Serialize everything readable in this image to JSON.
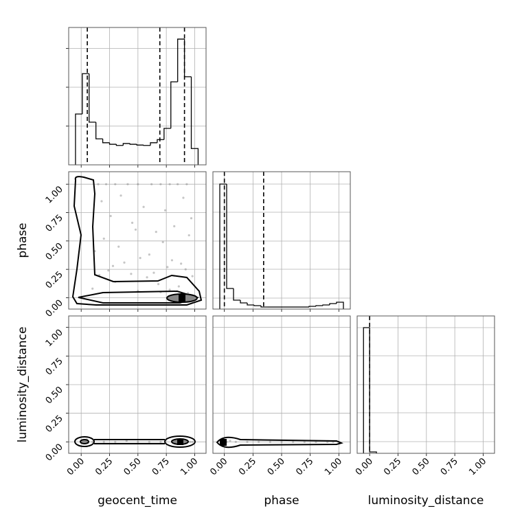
{
  "chart_data": [
    {
      "type": "histogram",
      "color": "#000000",
      "grid": true,
      "bins": [
        -0.05,
        0.01,
        0.07,
        0.13,
        0.19,
        0.25,
        0.31,
        0.37,
        0.43,
        0.49,
        0.55,
        0.61,
        0.67,
        0.73,
        0.79,
        0.85,
        0.91,
        0.97,
        1.03
      ],
      "counts": [
        131,
        235,
        110,
        67,
        57,
        53,
        50,
        55,
        53,
        51,
        50,
        57,
        65,
        94,
        214,
        324,
        227,
        42
      ],
      "quantiles": [
        0.054,
        0.693,
        0.91
      ],
      "xlim": [
        -0.11,
        1.1
      ],
      "ylim": [
        0,
        354
      ],
      "xticks": [
        0,
        0.25,
        0.5,
        0.75,
        1
      ],
      "yticks": [
        100,
        200,
        300
      ]
    },
    {
      "type": "scatter",
      "color": "#808080",
      "grid": true,
      "ylabel": "phase",
      "x": [
        0.15,
        0.22,
        0.3,
        0.41,
        0.5,
        0.62,
        0.7,
        0.78,
        0.85,
        0.93,
        0.18,
        0.26,
        0.35,
        0.45,
        0.55,
        0.66,
        0.74,
        0.82,
        0.9,
        0.97,
        0.2,
        0.33,
        0.48,
        0.6,
        0.72,
        0.88,
        0.95,
        0.12,
        0.28,
        0.52,
        0.64,
        0.8,
        0.92,
        0.16,
        0.38,
        0.58,
        0.76,
        0.98,
        0.24,
        0.44,
        0.68,
        0.86,
        0.1,
        0.3,
        0.5,
        0.7,
        0.9,
        0.84,
        0.78,
        0.94
      ],
      "y": [
        1,
        1,
        1,
        1,
        1,
        1,
        1,
        1,
        1,
        1,
        0.85,
        0.72,
        0.9,
        0.66,
        0.8,
        0.58,
        0.77,
        0.63,
        0.88,
        0.7,
        0.52,
        0.45,
        0.6,
        0.38,
        0.49,
        0.3,
        0.55,
        0.41,
        0.28,
        0.35,
        0.22,
        0.33,
        0.25,
        0.2,
        0.31,
        0.18,
        0.27,
        0.19,
        0.24,
        0.21,
        0.12,
        0.1,
        0.08,
        0.14,
        0.06,
        0.05,
        0.03,
        0.02,
        0.07,
        0.04
      ],
      "xlim": [
        -0.11,
        1.1
      ],
      "ylim": [
        -0.1,
        1.11
      ],
      "xticks": [
        0,
        0.25,
        0.5,
        0.75,
        1
      ],
      "yticks": [
        {
          "value": 0,
          "label": "0.00"
        },
        {
          "value": 0.25,
          "label": "0.25"
        },
        {
          "value": 0.5,
          "label": "0.50"
        },
        {
          "value": 0.75,
          "label": "0.75"
        },
        {
          "value": 1,
          "label": "1.00"
        }
      ]
    },
    {
      "type": "histogram",
      "color": "#000000",
      "grid": true,
      "bins": [
        -0.04,
        0.02,
        0.08,
        0.14,
        0.2,
        0.26,
        0.32,
        0.38,
        0.44,
        0.5,
        0.56,
        0.62,
        0.68,
        0.74,
        0.8,
        0.86,
        0.92,
        0.98,
        1.04
      ],
      "counts": [
        182,
        30,
        13,
        9,
        6,
        5,
        3,
        3,
        3,
        3,
        3,
        3,
        3,
        4,
        5,
        6,
        8,
        10
      ],
      "quantiles": [
        0.0,
        0.343
      ],
      "xlim": [
        -0.1,
        1.1
      ],
      "ylim": [
        0,
        200
      ],
      "xticks": [
        0,
        0.25,
        0.5,
        0.75,
        1
      ],
      "yticks": [
        16,
        58,
        99,
        141,
        182
      ]
    },
    {
      "type": "scatter",
      "color": "#808080",
      "grid": true,
      "ylabel": "luminosity_distance",
      "xlabel": "geocent_time",
      "x": [
        0.0,
        0.03,
        0.06,
        0.1,
        0.2,
        0.3,
        0.4,
        0.5,
        0.6,
        0.7,
        0.8,
        0.85,
        0.88,
        0.9,
        0.93,
        0.96,
        0.98,
        0.05
      ],
      "y": [
        0.0,
        0.01,
        -0.01,
        0.0,
        0.0,
        0.0,
        0.01,
        0.0,
        0.0,
        0.0,
        0.01,
        0.0,
        -0.01,
        0.0,
        0.01,
        0.0,
        0.0,
        0.02
      ],
      "xlim": [
        -0.11,
        1.1
      ],
      "ylim": [
        -0.1,
        1.1
      ],
      "xticks": [
        {
          "value": 0,
          "label": "0.00"
        },
        {
          "value": 0.25,
          "label": "0.25"
        },
        {
          "value": 0.5,
          "label": "0.50"
        },
        {
          "value": 0.75,
          "label": "0.75"
        },
        {
          "value": 1,
          "label": "1.00"
        }
      ],
      "yticks": [
        {
          "value": 0,
          "label": "0.00"
        },
        {
          "value": 0.25,
          "label": "0.25"
        },
        {
          "value": 0.5,
          "label": "0.50"
        },
        {
          "value": 0.75,
          "label": "0.75"
        },
        {
          "value": 1,
          "label": "1.00"
        }
      ]
    },
    {
      "type": "scatter",
      "color": "#808080",
      "grid": true,
      "xlabel": "phase",
      "x": [
        0.0,
        0.02,
        0.05,
        0.1,
        0.2,
        0.3,
        0.4,
        0.5,
        0.6,
        0.7,
        0.8,
        0.9,
        0.95,
        1.0
      ],
      "y": [
        0.0,
        0.0,
        0.01,
        0.0,
        0.0,
        0.0,
        0.0,
        0.0,
        0.0,
        0.0,
        0.0,
        0.0,
        0.0,
        0.0
      ],
      "xlim": [
        -0.1,
        1.1
      ],
      "ylim": [
        -0.1,
        1.1
      ],
      "xticks": [
        {
          "value": 0,
          "label": "0.00"
        },
        {
          "value": 0.25,
          "label": "0.25"
        },
        {
          "value": 0.5,
          "label": "0.50"
        },
        {
          "value": 0.75,
          "label": "0.75"
        },
        {
          "value": 1,
          "label": "1.00"
        }
      ],
      "yticks": [
        0,
        0.25,
        0.5,
        0.75,
        1
      ]
    },
    {
      "type": "histogram",
      "color": "#000000",
      "grid": true,
      "xlabel": "luminosity_distance",
      "bins": [
        -0.054,
        0.0,
        0.06
      ],
      "counts": [
        183,
        2
      ],
      "quantiles": [
        0.0
      ],
      "xlim": [
        -0.11,
        1.1
      ],
      "ylim": [
        0,
        200
      ],
      "xticks": [
        {
          "value": 0,
          "label": "0.00"
        },
        {
          "value": 0.25,
          "label": "0.25"
        },
        {
          "value": 0.5,
          "label": "0.50"
        },
        {
          "value": 0.75,
          "label": "0.75"
        },
        {
          "value": 1,
          "label": "1.00"
        }
      ],
      "yticks": [
        17,
        59,
        100,
        142,
        183
      ]
    }
  ]
}
